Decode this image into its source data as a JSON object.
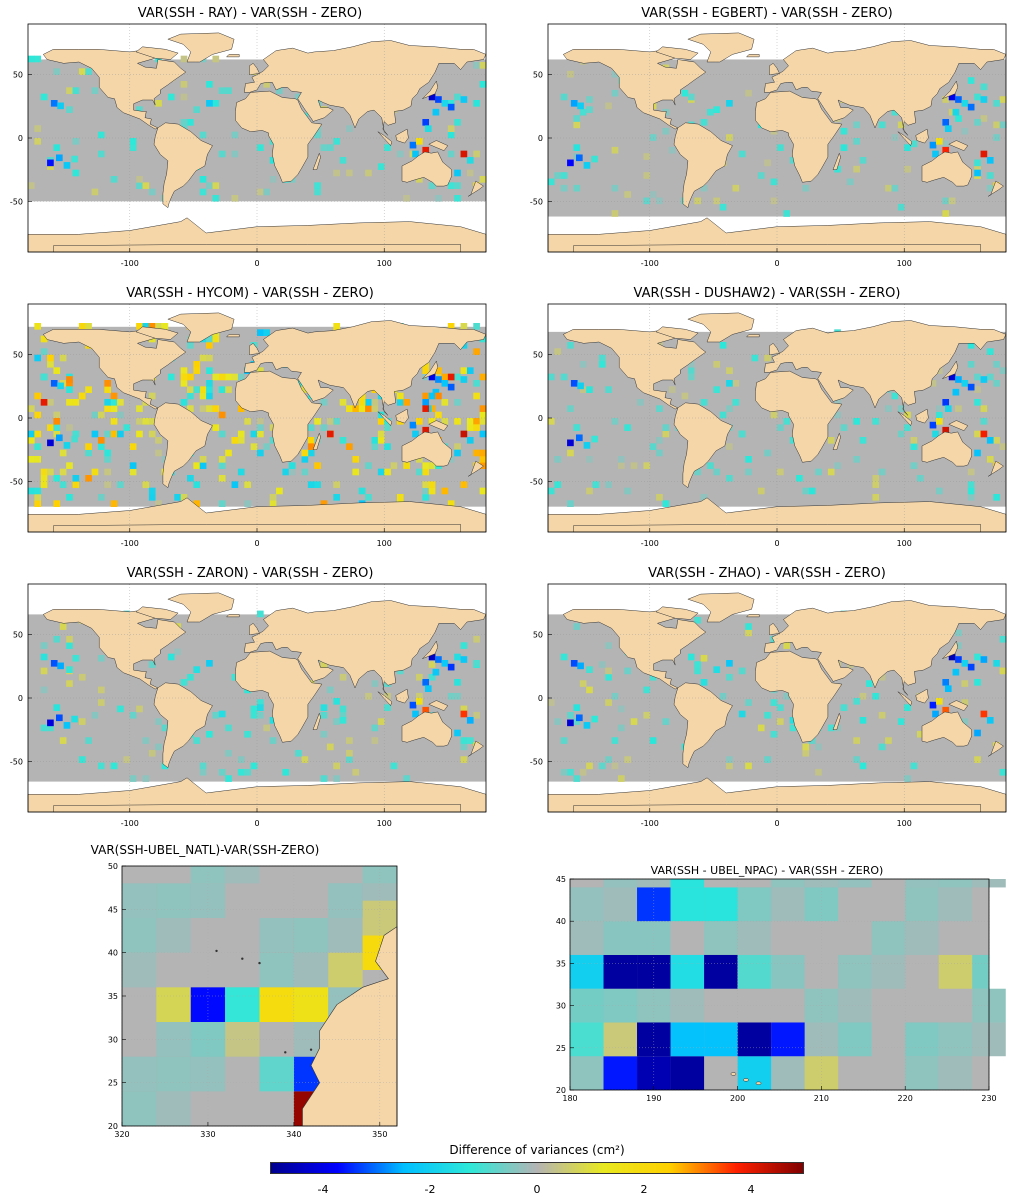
{
  "colors": {
    "land": "#f5d6a8",
    "ocean_neutral": "#b4b4b4",
    "no_data": "#ffffff",
    "colormap": [
      "#00008f",
      "#0000ff",
      "#00bfff",
      "#2fe8d8",
      "#b4b4b4",
      "#e8e820",
      "#ffd000",
      "#ff2000",
      "#800000"
    ]
  },
  "colorbar": {
    "label": "Difference of variances (cm²)",
    "ticks": [
      "-4",
      "-2",
      "0",
      "2",
      "4"
    ],
    "range": [
      -5,
      5
    ]
  },
  "chart_data": [
    {
      "type": "heatmap",
      "title": "VAR(SSH - RAY) - VAR(SSH - ZERO)",
      "xlabel": "",
      "ylabel": "",
      "xlim": [
        -180,
        180
      ],
      "ylim": [
        -90,
        90
      ],
      "xticks": [
        "-100",
        "0",
        "100"
      ],
      "yticks": [
        "50",
        "0",
        "-50"
      ],
      "data_lat_range": [
        -50,
        62
      ]
    },
    {
      "type": "heatmap",
      "title": "VAR(SSH - EGBERT) - VAR(SSH - ZERO)",
      "xlabel": "",
      "ylabel": "",
      "xlim": [
        -180,
        180
      ],
      "ylim": [
        -90,
        90
      ],
      "xticks": [
        "-100",
        "0",
        "100"
      ],
      "yticks": [
        "50",
        "0",
        "-50"
      ],
      "data_lat_range": [
        -62,
        62
      ]
    },
    {
      "type": "heatmap",
      "title": "VAR(SSH - HYCOM) - VAR(SSH - ZERO)",
      "xlabel": "",
      "ylabel": "",
      "xlim": [
        -180,
        180
      ],
      "ylim": [
        -90,
        90
      ],
      "xticks": [
        "-100",
        "0",
        "100"
      ],
      "yticks": [
        "50",
        "0",
        "-50"
      ],
      "data_lat_range": [
        -70,
        72
      ]
    },
    {
      "type": "heatmap",
      "title": "VAR(SSH - DUSHAW2) - VAR(SSH - ZERO)",
      "xlabel": "",
      "ylabel": "",
      "xlim": [
        -180,
        180
      ],
      "ylim": [
        -90,
        90
      ],
      "xticks": [
        "-100",
        "0",
        "100"
      ],
      "yticks": [
        "50",
        "0",
        "-50"
      ],
      "data_lat_range": [
        -70,
        68
      ]
    },
    {
      "type": "heatmap",
      "title": "VAR(SSH - ZARON) - VAR(SSH - ZERO)",
      "xlabel": "",
      "ylabel": "",
      "xlim": [
        -180,
        180
      ],
      "ylim": [
        -90,
        90
      ],
      "xticks": [
        "-100",
        "0",
        "100"
      ],
      "yticks": [
        "50",
        "0",
        "-50"
      ],
      "data_lat_range": [
        -66,
        66
      ]
    },
    {
      "type": "heatmap",
      "title": "VAR(SSH - ZHAO) - VAR(SSH - ZERO)",
      "xlabel": "",
      "ylabel": "",
      "xlim": [
        -180,
        180
      ],
      "ylim": [
        -90,
        90
      ],
      "xticks": [
        "-100",
        "0",
        "100"
      ],
      "yticks": [
        "50",
        "0",
        "-50"
      ],
      "data_lat_range": [
        -66,
        66
      ]
    },
    {
      "type": "heatmap",
      "title": "VAR(SSH-UBEL_NATL)-VAR(SSH-ZERO)",
      "xlabel": "",
      "ylabel": "",
      "xlim": [
        320,
        352
      ],
      "ylim": [
        20,
        50
      ],
      "xticks": [
        "320",
        "330",
        "340",
        "350"
      ],
      "yticks": [
        "50",
        "45",
        "40",
        "35",
        "30",
        "25",
        "20"
      ],
      "cell_width": 4,
      "cell_height": 4,
      "cells": [
        {
          "x": 340,
          "y": 20,
          "v": 4.8
        },
        {
          "x": 340,
          "y": 24,
          "v": -3.4
        },
        {
          "x": 336,
          "y": 24,
          "v": -0.8
        },
        {
          "x": 344,
          "y": 24,
          "v": -0.4
        },
        {
          "x": 320,
          "y": 24,
          "v": -0.3
        },
        {
          "x": 328,
          "y": 24,
          "v": -0.3
        },
        {
          "x": 332,
          "y": 28,
          "v": 0.4
        },
        {
          "x": 328,
          "y": 28,
          "v": -0.5
        },
        {
          "x": 324,
          "y": 28,
          "v": -0.3
        },
        {
          "x": 340,
          "y": 28,
          "v": -0.2
        },
        {
          "x": 324,
          "y": 32,
          "v": 0.8
        },
        {
          "x": 328,
          "y": 32,
          "v": -3.7
        },
        {
          "x": 332,
          "y": 32,
          "v": -1.2
        },
        {
          "x": 336,
          "y": 32,
          "v": 1.9
        },
        {
          "x": 340,
          "y": 32,
          "v": 1.6
        },
        {
          "x": 344,
          "y": 32,
          "v": -0.3
        },
        {
          "x": 344,
          "y": 36,
          "v": 0.6
        },
        {
          "x": 348,
          "y": 38,
          "v": 2.0
        },
        {
          "x": 348,
          "y": 42,
          "v": 0.5
        },
        {
          "x": 320,
          "y": 44,
          "v": -0.3
        },
        {
          "x": 328,
          "y": 44,
          "v": -0.3
        },
        {
          "x": 336,
          "y": 40,
          "v": -0.3
        },
        {
          "x": 344,
          "y": 44,
          "v": -0.3
        }
      ]
    },
    {
      "type": "heatmap",
      "title": "VAR(SSH - UBEL_NPAC) - VAR(SSH - ZERO)",
      "xlabel": "",
      "ylabel": "",
      "xlim": [
        180,
        230
      ],
      "ylim": [
        20,
        45
      ],
      "xticks": [
        "180",
        "190",
        "200",
        "210",
        "220",
        "230"
      ],
      "yticks": [
        "45",
        "40",
        "35",
        "30",
        "25",
        "20"
      ],
      "cell_width": 4,
      "cell_height": 4,
      "cells": [
        {
          "x": 184,
          "y": 20,
          "v": -3.6
        },
        {
          "x": 188,
          "y": 20,
          "v": -4.6
        },
        {
          "x": 192,
          "y": 20,
          "v": -4.8
        },
        {
          "x": 200,
          "y": 20,
          "v": -2.0
        },
        {
          "x": 208,
          "y": 20,
          "v": 0.6
        },
        {
          "x": 180,
          "y": 24,
          "v": -1.0
        },
        {
          "x": 184,
          "y": 24,
          "v": 0.5
        },
        {
          "x": 188,
          "y": 24,
          "v": -4.8
        },
        {
          "x": 192,
          "y": 24,
          "v": -2.4
        },
        {
          "x": 196,
          "y": 24,
          "v": -2.4
        },
        {
          "x": 200,
          "y": 24,
          "v": -4.8
        },
        {
          "x": 204,
          "y": 24,
          "v": -3.6
        },
        {
          "x": 212,
          "y": 24,
          "v": -0.5
        },
        {
          "x": 220,
          "y": 24,
          "v": -0.5
        },
        {
          "x": 180,
          "y": 28,
          "v": -0.6
        },
        {
          "x": 184,
          "y": 28,
          "v": -0.5
        },
        {
          "x": 180,
          "y": 32,
          "v": -2.0
        },
        {
          "x": 184,
          "y": 32,
          "v": -4.8
        },
        {
          "x": 188,
          "y": 32,
          "v": -4.8
        },
        {
          "x": 192,
          "y": 32,
          "v": -1.6
        },
        {
          "x": 196,
          "y": 32,
          "v": -4.8
        },
        {
          "x": 200,
          "y": 32,
          "v": -0.9
        },
        {
          "x": 204,
          "y": 32,
          "v": -0.4
        },
        {
          "x": 224,
          "y": 32,
          "v": 0.6
        },
        {
          "x": 228,
          "y": 32,
          "v": -0.6
        },
        {
          "x": 184,
          "y": 36,
          "v": -0.4
        },
        {
          "x": 188,
          "y": 36,
          "v": -0.4
        },
        {
          "x": 188,
          "y": 40,
          "v": -3.4
        },
        {
          "x": 192,
          "y": 40,
          "v": -1.4
        },
        {
          "x": 196,
          "y": 40,
          "v": -1.4
        },
        {
          "x": 200,
          "y": 40,
          "v": -0.5
        },
        {
          "x": 208,
          "y": 40,
          "v": -0.5
        },
        {
          "x": 180,
          "y": 40,
          "v": -0.3
        },
        {
          "x": 192,
          "y": 44,
          "v": -1.4
        },
        {
          "x": 184,
          "y": 44,
          "v": -0.3
        },
        {
          "x": 212,
          "y": 44,
          "v": -0.3
        },
        {
          "x": 220,
          "y": 44,
          "v": -0.3
        }
      ]
    }
  ]
}
